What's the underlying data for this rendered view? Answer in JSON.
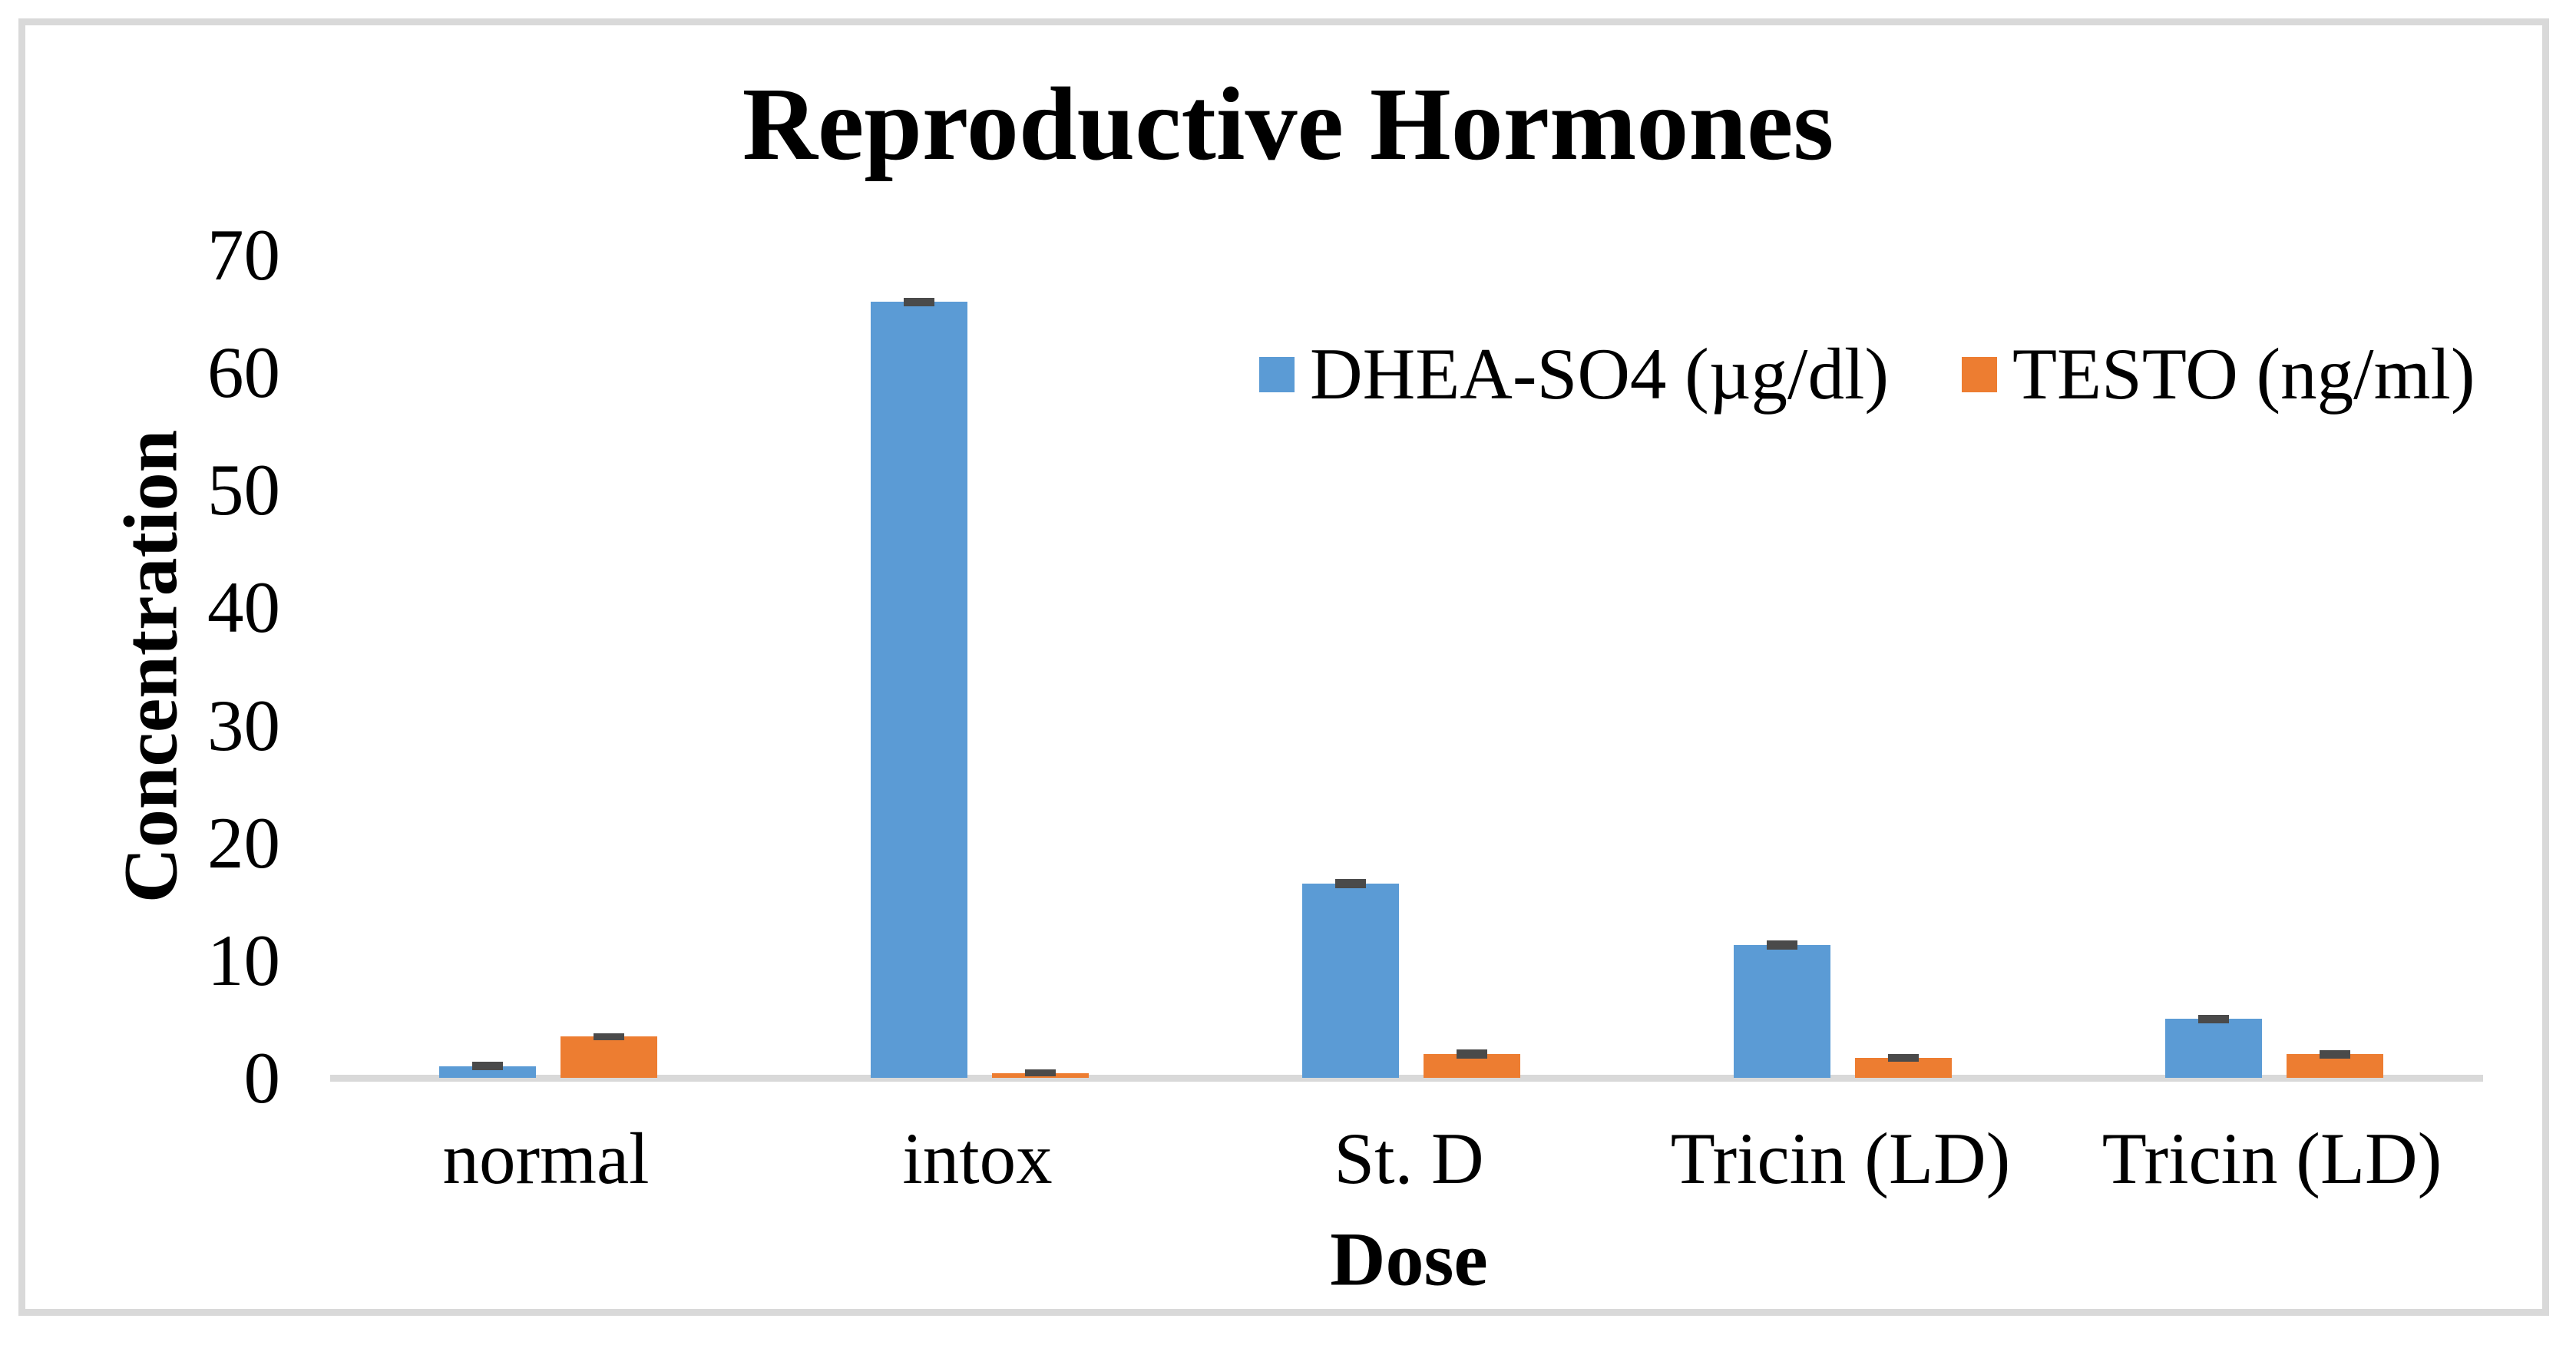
{
  "chart_data": {
    "type": "bar",
    "title": "Reproductive Hormones",
    "xlabel": "Dose",
    "ylabel": "Concentration",
    "categories": [
      "normal",
      "intox",
      "St. D",
      "Tricin (LD)",
      "Tricin (LD)"
    ],
    "series": [
      {
        "name": "DHEA-SO4 (µg/dl)",
        "color": "#5B9BD5",
        "values": [
          1.0,
          66.0,
          16.5,
          11.3,
          5.0
        ],
        "errors": [
          0.35,
          0.35,
          0.4,
          0.4,
          0.35
        ]
      },
      {
        "name": "TESTO (ng/ml)",
        "color": "#ED7D31",
        "values": [
          3.5,
          0.4,
          2.0,
          1.7,
          2.0
        ],
        "errors": [
          0.3,
          0.25,
          0.4,
          0.35,
          0.35
        ]
      }
    ],
    "y_ticks": [
      0,
      10,
      20,
      30,
      40,
      50,
      60,
      70
    ],
    "ylim": [
      0,
      70
    ],
    "grid": false,
    "legend_position": "top-right-inside",
    "error_bar_color": "#4A4A4A",
    "axis_line_color": "#D9D9D9",
    "background_color": "#FFFFFF",
    "frame_border_color": "#D9D9D9"
  }
}
